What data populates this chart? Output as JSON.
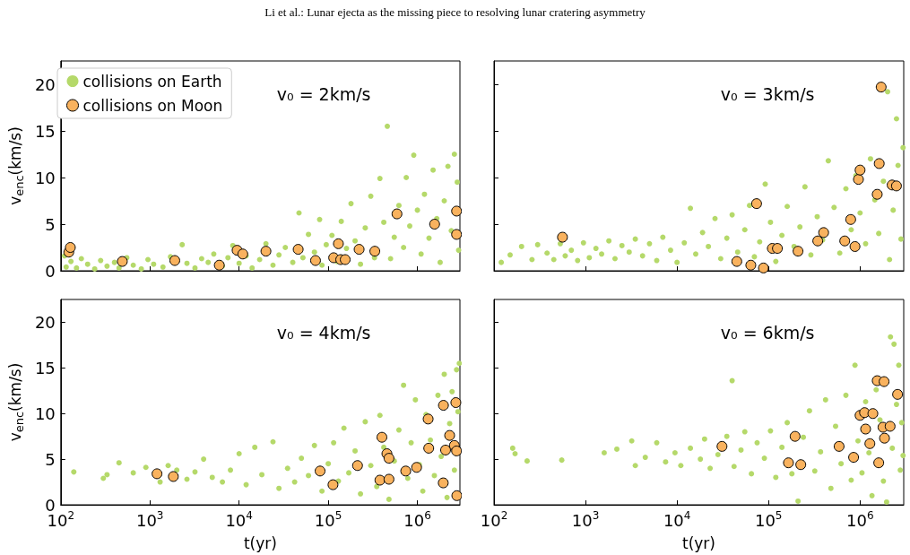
{
  "chart_data": [
    {
      "type": "scatter",
      "title": "Li et al.: Lunar ejecta as the missing piece to resolving lunar cratering asymmetry",
      "ylabel": "v$_{enc}$(km/s)",
      "annotations": [
        "v₀ = 2km/s"
      ],
      "legend": "top left",
      "marker": "circle",
      "log": "x",
      "tick_labels": "y",
      "xlim": [
        100,
        3000000
      ],
      "xticks": [
        {
          "value": 100,
          "label": null
        },
        {
          "value": 1000,
          "label": null
        },
        {
          "value": 10000,
          "label": null
        },
        {
          "value": 100000,
          "label": null
        },
        {
          "value": 1000000,
          "label": null
        }
      ],
      "ylim": [
        0,
        22.5
      ],
      "yticks": [
        0,
        5,
        10,
        15,
        20
      ],
      "series": [
        {
          "name": "collisions on Earth",
          "color": "#b5d96a",
          "x": [
            110,
            115,
            130,
            150,
            170,
            200,
            240,
            280,
            330,
            400,
            450,
            550,
            650,
            800,
            950,
            1100,
            1400,
            1700,
            2300,
            2600,
            3200,
            3800,
            4500,
            5200,
            6500,
            7500,
            8500,
            10000,
            12000,
            14000,
            17000,
            20000,
            24000,
            28000,
            33000,
            40000,
            47000,
            52000,
            60000,
            70000,
            80000,
            85000,
            95000,
            110000,
            125000,
            140000,
            160000,
            180000,
            200000,
            230000,
            260000,
            300000,
            330000,
            380000,
            420000,
            460000,
            500000,
            550000,
            620000,
            700000,
            750000,
            820000,
            910000,
            1000000,
            1100000,
            1200000,
            1350000,
            1500000,
            1650000,
            1800000,
            2000000,
            2200000,
            2400000,
            2600000,
            2800000,
            2900000
          ],
          "values": [
            1.6,
            0.4,
            1.0,
            0.3,
            1.3,
            0.7,
            0.2,
            1.1,
            0.5,
            0.9,
            0.3,
            1.4,
            0.6,
            0.2,
            1.2,
            0.7,
            0.4,
            1.5,
            2.8,
            0.8,
            0.3,
            1.3,
            0.9,
            1.8,
            0.5,
            1.4,
            2.7,
            0.8,
            1.6,
            0.3,
            1.2,
            2.9,
            0.6,
            1.7,
            2.5,
            0.9,
            6.2,
            1.4,
            3.9,
            2.0,
            5.5,
            0.6,
            2.8,
            3.8,
            1.0,
            5.3,
            2.4,
            7.2,
            3.2,
            0.7,
            4.6,
            8.0,
            1.4,
            9.9,
            5.2,
            15.5,
            1.3,
            3.6,
            7.0,
            2.5,
            10.0,
            4.8,
            12.4,
            6.5,
            1.8,
            8.2,
            3.5,
            10.8,
            5.6,
            0.9,
            7.5,
            11.2,
            4.3,
            12.5,
            9.5,
            2.2
          ]
        },
        {
          "name": "collisions on Moon",
          "color": "#f9b25e",
          "x": [
            123,
            128,
            490,
            1900,
            6000,
            9500,
            11000,
            20000,
            46000,
            72000,
            115000,
            130000,
            138000,
            155000,
            222000,
            333000,
            590000,
            1560000,
            2750000,
            2750000
          ],
          "values": [
            2.0,
            2.5,
            1.0,
            1.1,
            0.6,
            2.2,
            1.8,
            2.1,
            2.3,
            1.1,
            1.4,
            2.9,
            1.2,
            1.2,
            2.3,
            2.1,
            6.1,
            5.0,
            6.4,
            3.9
          ]
        }
      ]
    },
    {
      "type": "scatter",
      "annotations": [
        "v₀ = 3km/s"
      ],
      "marker": "circle",
      "log": "x",
      "tick_labels": false,
      "xlim": [
        100,
        3000000
      ],
      "xticks": [
        {
          "value": 100,
          "label": null
        },
        {
          "value": 1000,
          "label": null
        },
        {
          "value": 10000,
          "label": null
        },
        {
          "value": 100000,
          "label": null
        },
        {
          "value": 1000000,
          "label": null
        }
      ],
      "ylim": [
        0,
        22.5
      ],
      "yticks": [
        0,
        5,
        10,
        15,
        20
      ],
      "series": [
        {
          "color": "#b5d96a",
          "x": [
            120,
            150,
            200,
            260,
            300,
            380,
            450,
            530,
            600,
            700,
            820,
            950,
            1100,
            1300,
            1500,
            1800,
            2100,
            2500,
            3000,
            3500,
            4200,
            5000,
            6000,
            7000,
            8500,
            10000,
            12000,
            14000,
            16000,
            19000,
            22000,
            26000,
            30000,
            35000,
            40000,
            46000,
            55000,
            62000,
            70000,
            80000,
            92000,
            105000,
            120000,
            140000,
            160000,
            190000,
            220000,
            250000,
            290000,
            340000,
            390000,
            450000,
            520000,
            600000,
            700000,
            800000,
            900000,
            1000000,
            1150000,
            1300000,
            1450000,
            1600000,
            1800000,
            2000000,
            2100000,
            2300000,
            2500000,
            2600000,
            2800000,
            2950000
          ],
          "values": [
            0.9,
            1.7,
            2.6,
            1.2,
            2.8,
            1.9,
            1.2,
            2.9,
            1.6,
            2.2,
            1.1,
            3.0,
            1.4,
            2.4,
            1.8,
            3.2,
            1.3,
            2.7,
            2.0,
            3.4,
            1.6,
            2.9,
            1.1,
            3.6,
            2.2,
            0.9,
            3.0,
            6.7,
            1.8,
            4.1,
            2.6,
            5.6,
            1.3,
            3.5,
            6.0,
            2.0,
            4.4,
            7.0,
            1.5,
            3.1,
            9.3,
            5.2,
            1.0,
            3.8,
            6.9,
            2.6,
            4.7,
            9.0,
            1.7,
            5.8,
            3.3,
            11.8,
            6.8,
            1.9,
            8.8,
            4.4,
            10.2,
            6.2,
            2.9,
            12.0,
            7.6,
            4.0,
            9.6,
            19.2,
            1.2,
            6.5,
            16.3,
            11.3,
            3.4,
            13.2
          ]
        },
        {
          "color": "#f9b25e",
          "x": [
            560,
            74000,
            45000,
            64000,
            88000,
            110000,
            125000,
            210000,
            345000,
            400000,
            680000,
            790000,
            880000,
            960000,
            1000000,
            1540000,
            1620000,
            1700000,
            2240000,
            2500000
          ],
          "values": [
            3.6,
            7.2,
            1.0,
            0.6,
            0.3,
            2.4,
            2.4,
            2.1,
            3.2,
            4.1,
            3.2,
            5.5,
            2.6,
            9.8,
            10.8,
            8.2,
            11.5,
            19.7,
            9.2,
            9.1
          ]
        }
      ]
    },
    {
      "type": "scatter",
      "xlabel": "t(yr)",
      "ylabel": "v$_{enc}$(km/s)",
      "annotations": [
        "v₀ = 4km/s"
      ],
      "marker": "circle",
      "log": "x",
      "xlim": [
        100,
        3000000
      ],
      "xticks": [
        {
          "value": 100,
          "label": "10$^{2}$"
        },
        {
          "value": 1000,
          "label": "10$^{3}$"
        },
        {
          "value": 10000,
          "label": "10$^{4}$"
        },
        {
          "value": 100000,
          "label": "10$^{5}$"
        },
        {
          "value": 1000000,
          "label": "10$^{6}$"
        }
      ],
      "ylim": [
        0,
        22.5
      ],
      "yticks": [
        0,
        5,
        10,
        15,
        20
      ],
      "series": [
        {
          "color": "#b5d96a",
          "x": [
            140,
            300,
            330,
            450,
            650,
            900,
            1300,
            1600,
            2000,
            2600,
            3200,
            4000,
            5000,
            6500,
            8000,
            10000,
            12000,
            15000,
            18000,
            24000,
            28000,
            35000,
            42000,
            50000,
            60000,
            70000,
            85000,
            100000,
            115000,
            130000,
            150000,
            170000,
            200000,
            230000,
            260000,
            300000,
            350000,
            380000,
            420000,
            480000,
            550000,
            620000,
            700000,
            780000,
            850000,
            950000,
            1050000,
            1150000,
            1250000,
            1400000,
            1550000,
            1700000,
            1850000,
            2000000,
            2150000,
            2300000,
            2450000,
            2600000,
            2750000,
            2850000,
            2950000
          ],
          "values": [
            3.6,
            2.9,
            3.3,
            4.6,
            3.5,
            4.1,
            2.5,
            4.3,
            3.8,
            2.8,
            3.6,
            5.0,
            3.0,
            2.5,
            3.8,
            5.6,
            2.2,
            6.3,
            3.3,
            6.9,
            1.8,
            4.0,
            2.5,
            5.1,
            3.2,
            6.5,
            1.5,
            4.5,
            6.8,
            2.6,
            8.4,
            3.5,
            5.9,
            1.2,
            9.1,
            4.3,
            2.0,
            9.8,
            6.3,
            0.6,
            4.8,
            8.2,
            13.1,
            2.9,
            6.8,
            11.5,
            4.4,
            1.5,
            9.9,
            7.1,
            3.2,
            12.0,
            5.3,
            14.3,
            0.8,
            8.9,
            12.4,
            3.8,
            14.8,
            10.2,
            15.5
          ]
        },
        {
          "color": "#f9b25e",
          "x": [
            1200,
            1830,
            81000,
            113000,
            213000,
            400000,
            380000,
            455000,
            480000,
            480000,
            740000,
            980000,
            1320000,
            1340000,
            1960000,
            2070000,
            1950000,
            2300000,
            2600000,
            2700000,
            2750000,
            2770000
          ],
          "values": [
            3.4,
            3.1,
            3.7,
            2.2,
            4.3,
            7.4,
            2.7,
            5.6,
            5.1,
            2.8,
            3.7,
            4.1,
            9.4,
            6.2,
            10.9,
            6.0,
            2.4,
            7.6,
            6.5,
            11.2,
            5.9,
            1.0
          ]
        }
      ]
    },
    {
      "type": "scatter",
      "xlabel": "t(yr)",
      "annotations": [
        "v₀ = 6km/s"
      ],
      "marker": "circle",
      "log": "x",
      "tick_labels": "x",
      "xlim": [
        100,
        3000000
      ],
      "xticks": [
        {
          "value": 100,
          "label": "10$^{2}$"
        },
        {
          "value": 1000,
          "label": "10$^{3}$"
        },
        {
          "value": 10000,
          "label": "10$^{4}$"
        },
        {
          "value": 100000,
          "label": "10$^{5}$"
        },
        {
          "value": 1000000,
          "label": "10$^{6}$"
        }
      ],
      "ylim": [
        0,
        22.5
      ],
      "yticks": [
        0,
        5,
        10,
        15,
        20
      ],
      "series": [
        {
          "color": "#b5d96a",
          "x": [
            160,
            170,
            230,
            550,
            1600,
            2200,
            3200,
            3500,
            4500,
            6000,
            7500,
            9500,
            11000,
            14000,
            18000,
            20000,
            23000,
            28000,
            35000,
            40000,
            42000,
            50000,
            55000,
            65000,
            75000,
            90000,
            105000,
            120000,
            140000,
            160000,
            180000,
            210000,
            240000,
            280000,
            320000,
            370000,
            420000,
            480000,
            540000,
            620000,
            700000,
            800000,
            880000,
            950000,
            1050000,
            1150000,
            1250000,
            1350000,
            1500000,
            1650000,
            1800000,
            1950000,
            2150000,
            2250000,
            2350000,
            2500000,
            2650000,
            2750000,
            2850000,
            2950000
          ],
          "values": [
            6.2,
            5.6,
            4.8,
            4.9,
            5.7,
            6.1,
            7.0,
            4.3,
            5.2,
            6.8,
            4.7,
            5.7,
            4.3,
            6.2,
            5.0,
            7.2,
            4.0,
            5.5,
            7.5,
            13.6,
            4.2,
            6.0,
            8.0,
            3.4,
            6.8,
            5.1,
            8.1,
            3.0,
            6.3,
            9.0,
            3.4,
            0.4,
            7.4,
            10.3,
            3.7,
            5.8,
            11.5,
            1.8,
            8.6,
            4.5,
            12.0,
            2.7,
            15.3,
            7.0,
            3.5,
            11.3,
            5.7,
            1.0,
            12.6,
            9.3,
            2.6,
            0.3,
            18.4,
            6.2,
            17.6,
            11.0,
            15.3,
            3.8,
            9.0,
            5.4
          ]
        },
        {
          "color": "#f9b25e",
          "x": [
            31000,
            165000,
            195000,
            225000,
            590000,
            850000,
            1000000,
            1120000,
            1150000,
            1280000,
            1380000,
            1540000,
            1600000,
            1780000,
            1830000,
            1850000,
            2130000,
            2570000
          ],
          "values": [
            6.4,
            4.6,
            7.5,
            4.4,
            6.4,
            5.2,
            9.8,
            10.1,
            8.3,
            6.7,
            10.0,
            13.6,
            4.6,
            8.5,
            13.5,
            7.3,
            8.6,
            12.1
          ]
        }
      ]
    }
  ]
}
